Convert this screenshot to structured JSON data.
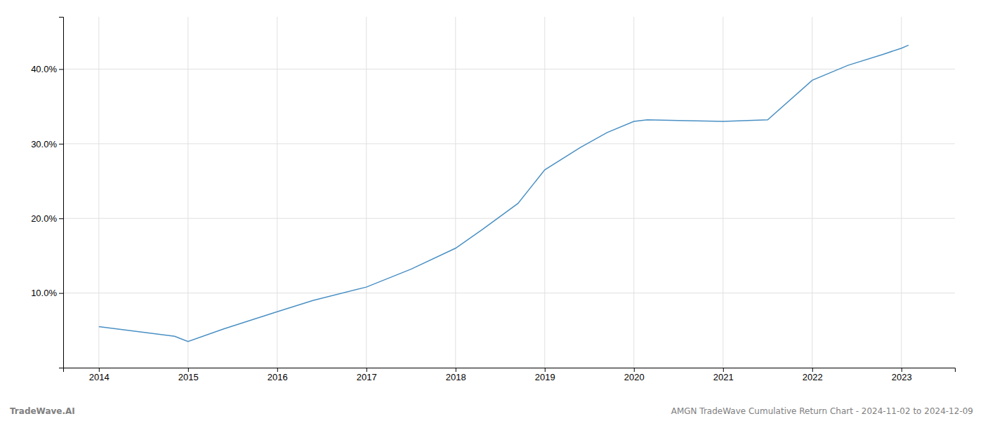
{
  "chart_data": {
    "type": "line",
    "x": [
      2014.0,
      2014.85,
      2015.0,
      2015.4,
      2016.0,
      2016.4,
      2017.0,
      2017.5,
      2018.0,
      2018.3,
      2018.7,
      2019.0,
      2019.4,
      2019.7,
      2020.0,
      2020.15,
      2020.5,
      2021.0,
      2021.5,
      2022.0,
      2022.4,
      2022.8,
      2023.0,
      2023.08
    ],
    "values": [
      5.5,
      4.2,
      3.5,
      5.2,
      7.5,
      9.0,
      10.8,
      13.2,
      16.0,
      18.5,
      22.0,
      26.5,
      29.5,
      31.5,
      33.0,
      33.2,
      33.1,
      33.0,
      33.2,
      38.5,
      40.5,
      42.0,
      42.8,
      43.2
    ],
    "color": "#4a90c4",
    "xlim": [
      2013.6,
      2023.6
    ],
    "ylim": [
      0,
      47
    ],
    "xticks": [
      2014,
      2015,
      2016,
      2017,
      2018,
      2019,
      2020,
      2021,
      2022,
      2023
    ],
    "yticks": [
      {
        "value": 10.0,
        "label": "10.0%"
      },
      {
        "value": 20.0,
        "label": "20.0%"
      },
      {
        "value": 30.0,
        "label": "30.0%"
      },
      {
        "value": 40.0,
        "label": "40.0%"
      }
    ],
    "grid": true,
    "annotations": [
      "TradeWave.AI",
      "AMGN TradeWave Cumulative Return Chart - 2024-11-02 to 2024-12-09"
    ]
  }
}
